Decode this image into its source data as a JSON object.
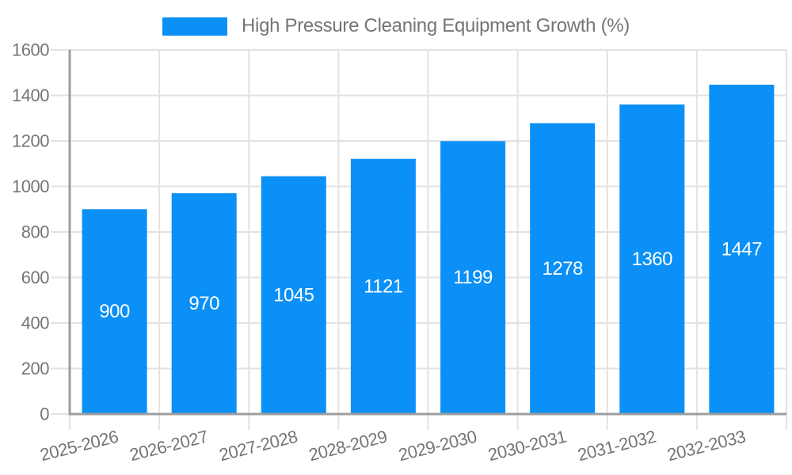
{
  "chart_data": {
    "type": "bar",
    "title": "High Pressure Cleaning Equipment Growth (%)",
    "legend": {
      "position": "top",
      "label": "High Pressure Cleaning Equipment Growth (%)"
    },
    "categories": [
      "2025-2026",
      "2026-2027",
      "2027-2028",
      "2028-2029",
      "2029-2030",
      "2030-2031",
      "2031-2032",
      "2032-2033"
    ],
    "series": [
      {
        "name": "High Pressure Cleaning Equipment Growth (%)",
        "values": [
          900,
          970,
          1045,
          1121,
          1199,
          1278,
          1360,
          1447
        ],
        "color": "#0a90f6"
      }
    ],
    "bar_value_labels": [
      "900",
      "970",
      "1045",
      "1121",
      "1199",
      "1278",
      "1360",
      "1447"
    ],
    "xlabel": "",
    "ylabel": "",
    "ylim": [
      0,
      1600
    ],
    "ytick_step": 200,
    "yticks": [
      "0",
      "200",
      "400",
      "600",
      "800",
      "1000",
      "1200",
      "1400",
      "1600"
    ],
    "x_label_rotation_deg": -14,
    "grid": {
      "horizontal": true,
      "vertical": true,
      "color": "#e2e2e2"
    },
    "colors": {
      "background": "#ffffff",
      "axis": "#9e9e9e",
      "tick": "#e2e2e2",
      "label_text": "#757575",
      "bar_value_text": "#ffffff"
    }
  }
}
